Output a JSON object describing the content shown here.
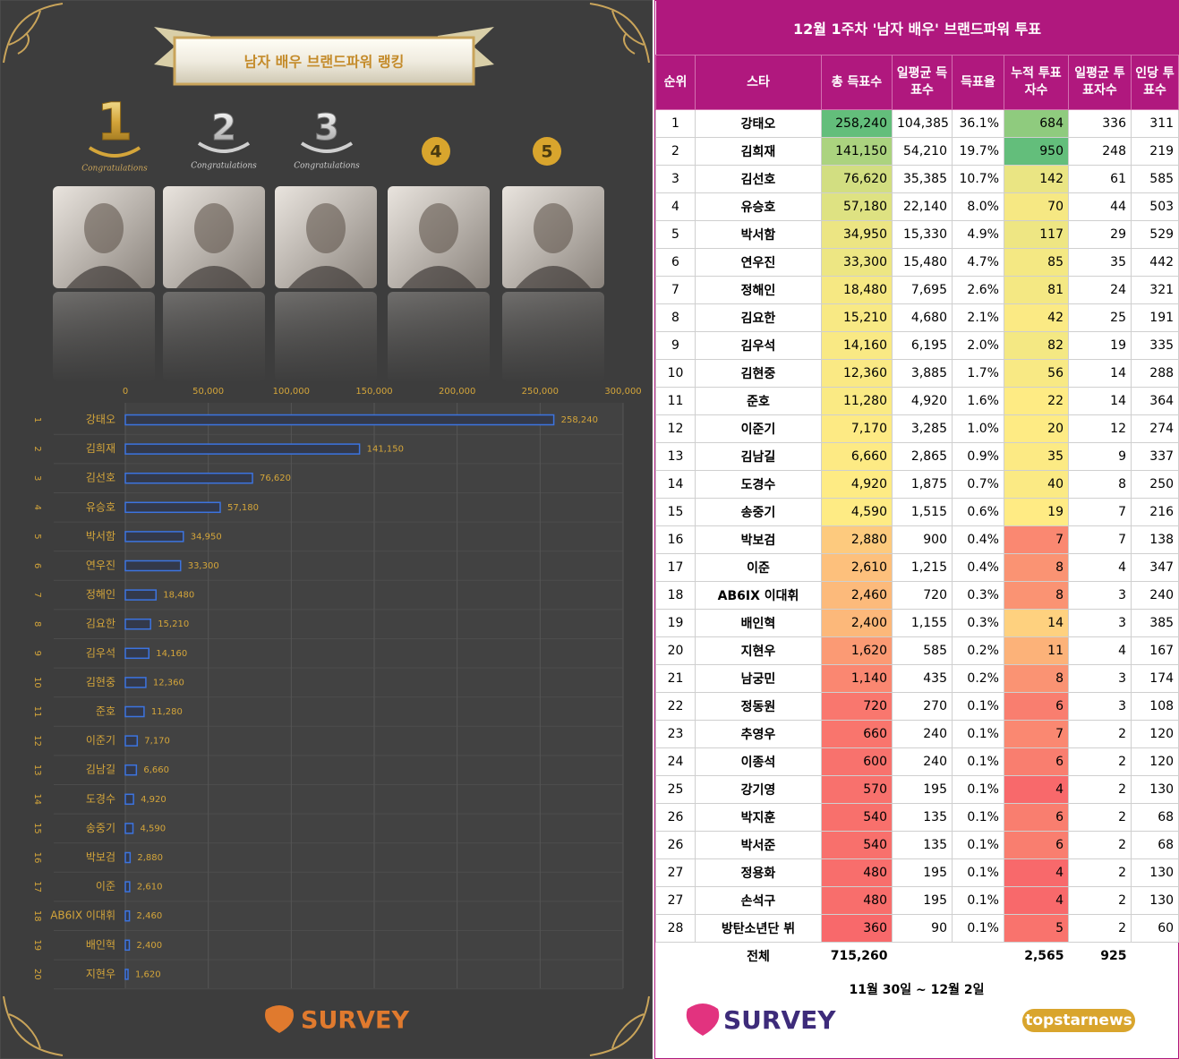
{
  "banner_title": "남자 배우 브랜드파워 랭킹",
  "podium": [
    {
      "rank": "1",
      "caption": "Congratulations"
    },
    {
      "rank": "2",
      "caption": "Congratulations"
    },
    {
      "rank": "3",
      "caption": "Congratulations"
    },
    {
      "rank": "4"
    },
    {
      "rank": "5"
    }
  ],
  "chart_data": {
    "type": "bar",
    "orientation": "horizontal",
    "ranks": [
      1,
      2,
      3,
      4,
      5,
      6,
      7,
      8,
      9,
      10,
      11,
      12,
      13,
      14,
      15,
      16,
      17,
      18,
      19,
      20
    ],
    "categories": [
      "강태오",
      "김희재",
      "김선호",
      "유승호",
      "박서함",
      "연우진",
      "정해인",
      "김요한",
      "김우석",
      "김현중",
      "준호",
      "이준기",
      "김남길",
      "도경수",
      "송중기",
      "박보검",
      "이준",
      "AB6IX 이대휘",
      "배인혁",
      "지현우"
    ],
    "values": [
      258240,
      141150,
      76620,
      57180,
      34950,
      33300,
      18480,
      15210,
      14160,
      12360,
      11280,
      7170,
      6660,
      4920,
      4590,
      2880,
      2610,
      2460,
      2400,
      1620
    ],
    "value_labels": [
      "258,240",
      "141,150",
      "76,620",
      "57,180",
      "34,950",
      "33,300",
      "18,480",
      "15,210",
      "14,160",
      "12,360",
      "11,280",
      "7,170",
      "6,660",
      "4,920",
      "4,590",
      "2,880",
      "2,610",
      "2,460",
      "2,400",
      "1,620"
    ],
    "color": "#3c74e0",
    "xlim": [
      0,
      300000
    ],
    "xticks": [
      0,
      {
        "value": 50000,
        "label": "50,000"
      },
      {
        "value": 100000,
        "label": "100,000"
      },
      {
        "value": 150000,
        "label": "150,000"
      },
      {
        "value": 200000,
        "label": "200,000"
      },
      {
        "value": 250000,
        "label": "250,000"
      },
      {
        "value": 300000,
        "label": "300,000"
      }
    ],
    "grid": true
  },
  "left_logo": "SURVEY",
  "table": {
    "title": "12월 1주차 '남자 배우' 브랜드파워 투표",
    "header": [
      "순위",
      "스타",
      "총 득표수",
      "일평균 득표수",
      "득표율",
      "누적 투표자수",
      "일평균 투표자수",
      "인당 투표수"
    ],
    "rows": [
      [
        "1",
        "강태오",
        "258,240",
        "104,385",
        "36.1%",
        "684",
        "336",
        "311"
      ],
      [
        "2",
        "김희재",
        "141,150",
        "54,210",
        "19.7%",
        "950",
        "248",
        "219"
      ],
      [
        "3",
        "김선호",
        "76,620",
        "35,385",
        "10.7%",
        "142",
        "61",
        "585"
      ],
      [
        "4",
        "유승호",
        "57,180",
        "22,140",
        "8.0%",
        "70",
        "44",
        "503"
      ],
      [
        "5",
        "박서함",
        "34,950",
        "15,330",
        "4.9%",
        "117",
        "29",
        "529"
      ],
      [
        "6",
        "연우진",
        "33,300",
        "15,480",
        "4.7%",
        "85",
        "35",
        "442"
      ],
      [
        "7",
        "정해인",
        "18,480",
        "7,695",
        "2.6%",
        "81",
        "24",
        "321"
      ],
      [
        "8",
        "김요한",
        "15,210",
        "4,680",
        "2.1%",
        "42",
        "25",
        "191"
      ],
      [
        "9",
        "김우석",
        "14,160",
        "6,195",
        "2.0%",
        "82",
        "19",
        "335"
      ],
      [
        "10",
        "김현중",
        "12,360",
        "3,885",
        "1.7%",
        "56",
        "14",
        "288"
      ],
      [
        "11",
        "준호",
        "11,280",
        "4,920",
        "1.6%",
        "22",
        "14",
        "364"
      ],
      [
        "12",
        "이준기",
        "7,170",
        "3,285",
        "1.0%",
        "20",
        "12",
        "274"
      ],
      [
        "13",
        "김남길",
        "6,660",
        "2,865",
        "0.9%",
        "35",
        "9",
        "337"
      ],
      [
        "14",
        "도경수",
        "4,920",
        "1,875",
        "0.7%",
        "40",
        "8",
        "250"
      ],
      [
        "15",
        "송중기",
        "4,590",
        "1,515",
        "0.6%",
        "19",
        "7",
        "216"
      ],
      [
        "16",
        "박보검",
        "2,880",
        "900",
        "0.4%",
        "7",
        "7",
        "138"
      ],
      [
        "17",
        "이준",
        "2,610",
        "1,215",
        "0.4%",
        "8",
        "4",
        "347"
      ],
      [
        "18",
        "AB6IX 이대휘",
        "2,460",
        "720",
        "0.3%",
        "8",
        "3",
        "240"
      ],
      [
        "19",
        "배인혁",
        "2,400",
        "1,155",
        "0.3%",
        "14",
        "3",
        "385"
      ],
      [
        "20",
        "지현우",
        "1,620",
        "585",
        "0.2%",
        "11",
        "4",
        "167"
      ],
      [
        "21",
        "남궁민",
        "1,140",
        "435",
        "0.2%",
        "8",
        "3",
        "174"
      ],
      [
        "22",
        "정동원",
        "720",
        "270",
        "0.1%",
        "6",
        "3",
        "108"
      ],
      [
        "23",
        "추영우",
        "660",
        "240",
        "0.1%",
        "7",
        "2",
        "120"
      ],
      [
        "24",
        "이종석",
        "600",
        "240",
        "0.1%",
        "6",
        "2",
        "120"
      ],
      [
        "25",
        "강기영",
        "570",
        "195",
        "0.1%",
        "4",
        "2",
        "130"
      ],
      [
        "26",
        "박지훈",
        "540",
        "135",
        "0.1%",
        "6",
        "2",
        "68"
      ],
      [
        "26",
        "박서준",
        "540",
        "135",
        "0.1%",
        "6",
        "2",
        "68"
      ],
      [
        "27",
        "정용화",
        "480",
        "195",
        "0.1%",
        "4",
        "2",
        "130"
      ],
      [
        "27",
        "손석구",
        "480",
        "195",
        "0.1%",
        "4",
        "2",
        "130"
      ],
      [
        "28",
        "방탄소년단 뷔",
        "360",
        "90",
        "0.1%",
        "5",
        "2",
        "60"
      ]
    ],
    "total": {
      "label": "전체",
      "votes": "715,260",
      "voters": "2,565",
      "daily_voters": "925"
    },
    "heat": {
      "columns": [
        2,
        5
      ],
      "low": "#f8696b",
      "mid": "#ffeb84",
      "high": "#63be7b"
    }
  },
  "period": "11월 30일 ~ 12월 2일",
  "right_logo": "SURVEY",
  "partner_logo": "topstarnews"
}
